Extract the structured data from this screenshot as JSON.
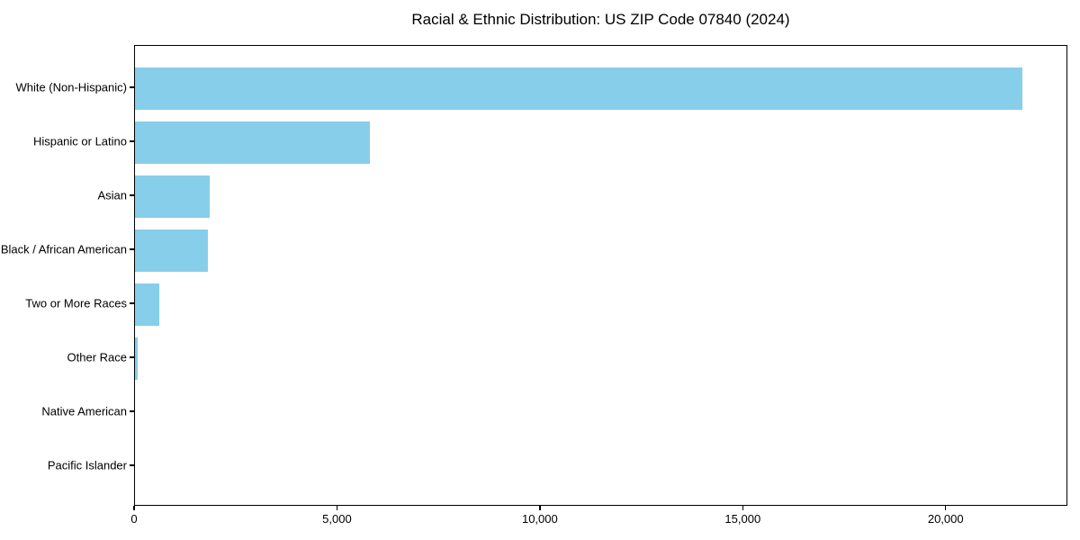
{
  "chart_data": {
    "type": "bar",
    "orientation": "horizontal",
    "title": "Racial & Ethnic Distribution: US ZIP Code 07840 (2024)",
    "categories": [
      "White (Non-Hispanic)",
      "Hispanic or Latino",
      "Asian",
      "Black / African American",
      "Two or More Races",
      "Other Race",
      "Native American",
      "Pacific Islander"
    ],
    "values": [
      21900,
      5800,
      1850,
      1800,
      600,
      75,
      0,
      0
    ],
    "xlabel": "",
    "ylabel": "",
    "xlim": [
      0,
      23000
    ],
    "x_ticks": [
      0,
      5000,
      10000,
      15000,
      20000
    ],
    "x_tick_labels": [
      "0",
      "5,000",
      "10,000",
      "15,000",
      "20,000"
    ],
    "bar_color": "#87CEEB",
    "frame_color": "#000000",
    "background_color": "#FFFFFF",
    "grid": false,
    "legend": false
  }
}
